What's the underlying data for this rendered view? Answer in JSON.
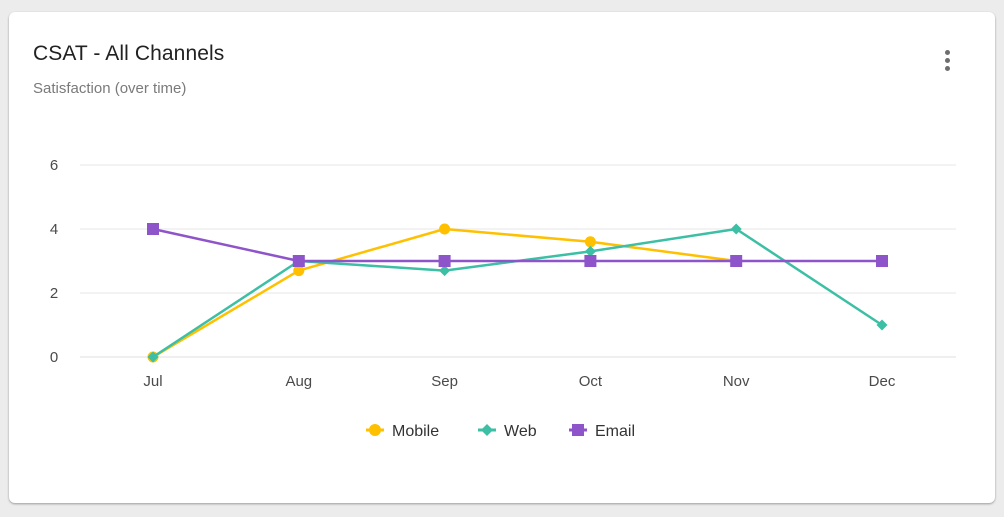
{
  "card": {
    "title": "CSAT - All Channels",
    "subtitle": "Satisfaction (over time)",
    "menu_icon": "more-vertical-icon"
  },
  "colors": {
    "mobile": "#ffc000",
    "web": "#3cbfa4",
    "email": "#8e54c9",
    "grid": "#efefef",
    "tick_text": "#4a4a4a"
  },
  "chart_data": {
    "type": "line",
    "title": "CSAT - All Channels",
    "subtitle": "Satisfaction (over time)",
    "xlabel": "",
    "ylabel": "",
    "categories": [
      "Jul",
      "Aug",
      "Sep",
      "Oct",
      "Nov",
      "Dec"
    ],
    "yticks": [
      0,
      2,
      4,
      6
    ],
    "ylim": [
      0,
      6
    ],
    "grid": true,
    "legend_position": "bottom",
    "series": [
      {
        "name": "Mobile",
        "marker": "circle",
        "color": "#ffc000",
        "values": [
          0,
          2.7,
          4,
          3.6,
          3,
          null
        ]
      },
      {
        "name": "Web",
        "marker": "diamond",
        "color": "#3cbfa4",
        "values": [
          0,
          3,
          2.7,
          3.3,
          4,
          1
        ]
      },
      {
        "name": "Email",
        "marker": "square",
        "color": "#8e54c9",
        "values": [
          4,
          3,
          3,
          3,
          3,
          3
        ]
      }
    ]
  },
  "legend": {
    "items": [
      {
        "label": "Mobile"
      },
      {
        "label": "Web"
      },
      {
        "label": "Email"
      }
    ]
  }
}
